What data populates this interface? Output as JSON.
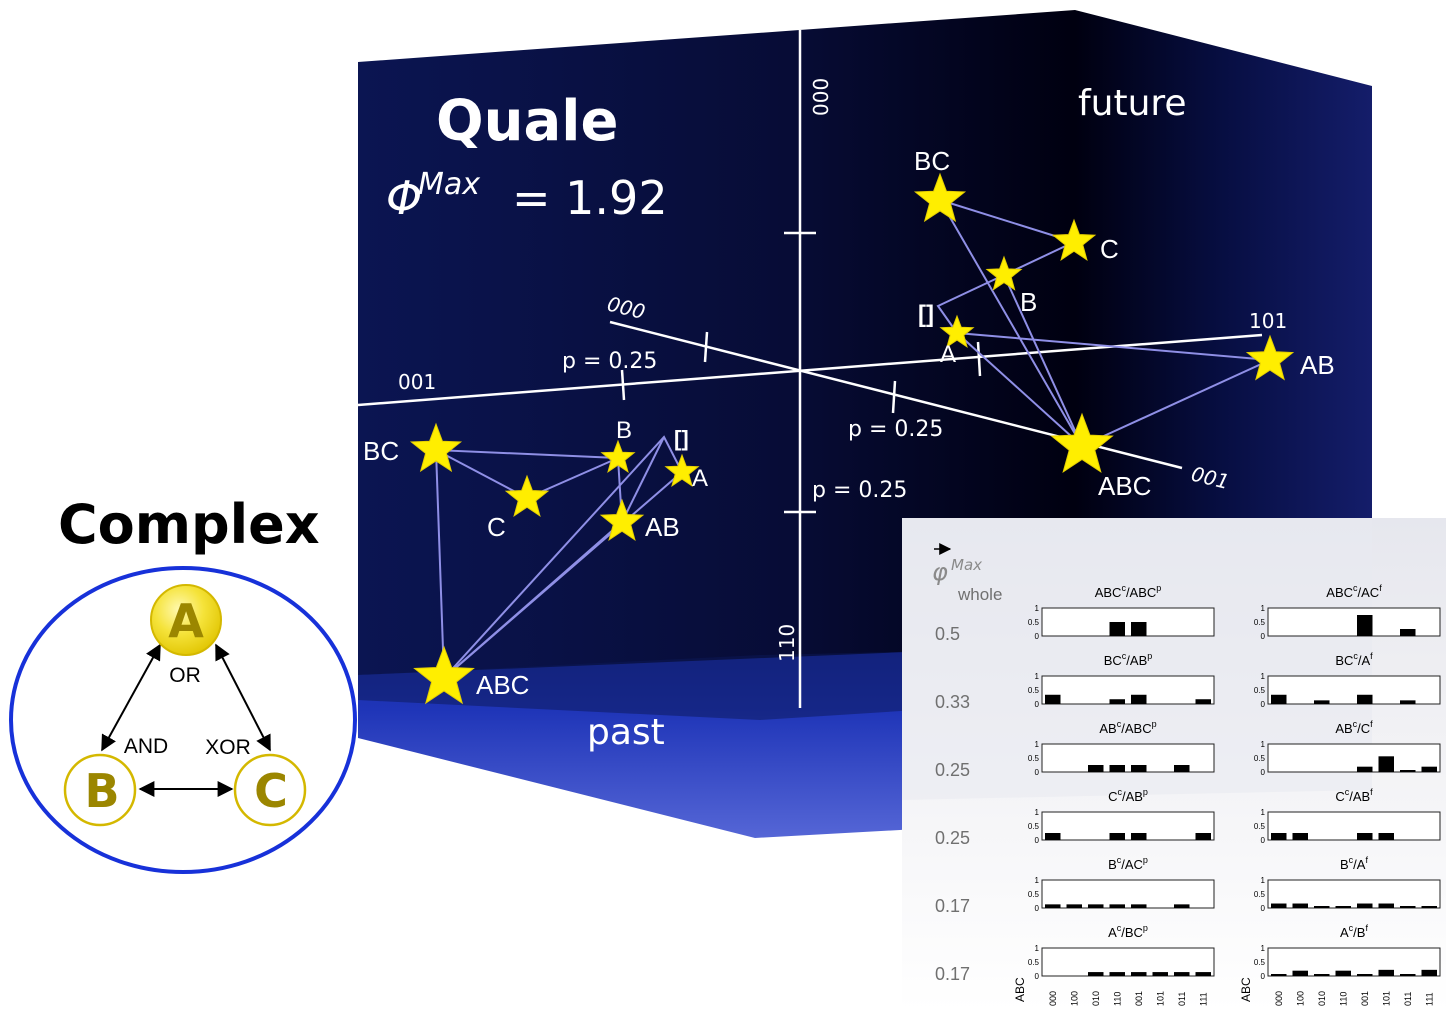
{
  "quale": {
    "title": "Quale",
    "phi_symbol": "Φ",
    "phi_superscript": "Max",
    "phi_value": "= 1.92",
    "future_label": "future",
    "past_label": "past"
  },
  "axes": {
    "vertical_top_label": "000",
    "vertical_bottom_label": "110",
    "diag_down_start_label": "000",
    "diag_down_end_label": "001",
    "diag_up_left_label": "001",
    "diag_up_right_label": "101",
    "tick_label_a": "p = 0.25",
    "tick_label_b": "p = 0.25",
    "tick_label_c": "p = 0.25"
  },
  "future_points": [
    "BC",
    "C",
    "B",
    "[]",
    "A",
    "AB",
    "ABC"
  ],
  "past_points": [
    "BC",
    "B",
    "[]",
    "A",
    "C",
    "AB",
    "ABC"
  ],
  "complex": {
    "title": "Complex",
    "node_a": "A",
    "node_b": "B",
    "node_c": "C",
    "gate_a": "OR",
    "gate_b": "AND",
    "gate_c": "XOR",
    "colors": {
      "node_fill": "#f2dc24",
      "node_text": "#9b8600",
      "ring": "#1731d9"
    }
  },
  "panel": {
    "phi_header": "φ",
    "phi_header_sup": "Max",
    "whole_label": "whole",
    "rows_phi": [
      "0.5",
      "0.33",
      "0.25",
      "0.25",
      "0.17",
      "0.17"
    ],
    "ytick_1": "1",
    "ytick_half": "0.5",
    "ytick_0": "0",
    "x_axis_label": "ABC",
    "x_states": [
      "000",
      "100",
      "010",
      "110",
      "001",
      "101",
      "011",
      "111"
    ],
    "past_titles": [
      {
        "main": "ABC",
        "sup": "c",
        "rest": "/ABC",
        "sup2": "p"
      },
      {
        "main": "BC",
        "sup": "c",
        "rest": "/AB",
        "sup2": "p"
      },
      {
        "main": "AB",
        "sup": "c",
        "rest": "/ABC",
        "sup2": "p"
      },
      {
        "main": "C",
        "sup": "c",
        "rest": "/AB",
        "sup2": "p"
      },
      {
        "main": "B",
        "sup": "c",
        "rest": "/AC",
        "sup2": "p"
      },
      {
        "main": "A",
        "sup": "c",
        "rest": "/BC",
        "sup2": "p"
      }
    ],
    "future_titles": [
      {
        "main": "ABC",
        "sup": "c",
        "rest": "/AC",
        "sup2": "f"
      },
      {
        "main": "BC",
        "sup": "c",
        "rest": "/A",
        "sup2": "f"
      },
      {
        "main": "AB",
        "sup": "c",
        "rest": "/C",
        "sup2": "f"
      },
      {
        "main": "C",
        "sup": "c",
        "rest": "/AB",
        "sup2": "f"
      },
      {
        "main": "B",
        "sup": "c",
        "rest": "/A",
        "sup2": "f"
      },
      {
        "main": "A",
        "sup": "c",
        "rest": "/B",
        "sup2": "f"
      }
    ],
    "past_values": [
      [
        0,
        0,
        0,
        0.5,
        0.5,
        0,
        0,
        0
      ],
      [
        0.33,
        0,
        0,
        0.17,
        0.33,
        0,
        0,
        0.17
      ],
      [
        0,
        0,
        0.25,
        0.25,
        0.25,
        0,
        0.25,
        0
      ],
      [
        0.25,
        0,
        0,
        0.25,
        0.25,
        0,
        0,
        0.25
      ],
      [
        0.13,
        0.13,
        0.13,
        0.13,
        0.13,
        0,
        0.13,
        0
      ],
      [
        0,
        0,
        0.14,
        0.14,
        0.14,
        0.14,
        0.14,
        0.14
      ]
    ],
    "future_values": [
      [
        0,
        0,
        0,
        0,
        0.75,
        0,
        0.25,
        0
      ],
      [
        0.33,
        0,
        0.13,
        0,
        0.33,
        0,
        0.13,
        0
      ],
      [
        0,
        0,
        0,
        0,
        0.19,
        0.56,
        0.06,
        0.19
      ],
      [
        0.25,
        0.25,
        0,
        0,
        0.25,
        0.25,
        0,
        0
      ],
      [
        0.16,
        0.16,
        0.06,
        0.06,
        0.16,
        0.16,
        0.06,
        0.06
      ],
      [
        0.03,
        0.19,
        0.03,
        0.19,
        0.06,
        0.22,
        0.06,
        0.22
      ]
    ]
  }
}
